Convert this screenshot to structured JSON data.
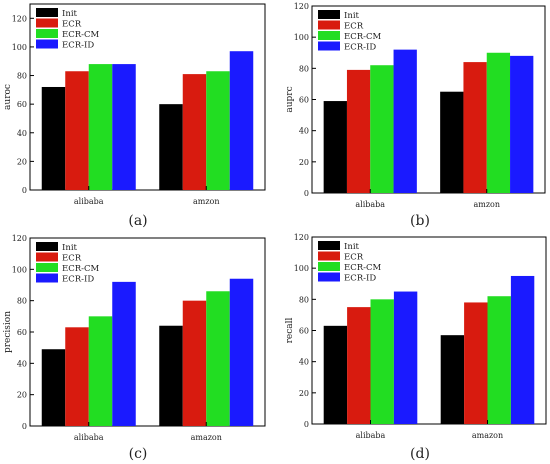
{
  "figure": {
    "panels": [
      {
        "caption": "(a)"
      },
      {
        "caption": "(b)"
      },
      {
        "caption": "(c)"
      },
      {
        "caption": "(d)"
      }
    ]
  },
  "colors": {
    "Init": "#000000",
    "ECR": "#d81b0f",
    "ECR-CM": "#22dd22",
    "ECR-ID": "#1a1aff"
  },
  "chart_data": [
    {
      "type": "bar",
      "ylabel": "auroc",
      "xlabel": "",
      "categories": [
        "alibaba",
        "amzon"
      ],
      "ylim": [
        0,
        130
      ],
      "yticks": [
        0,
        20,
        40,
        60,
        80,
        100,
        120
      ],
      "legend_position": "top-left",
      "series": [
        {
          "name": "Init",
          "values": [
            72,
            60
          ]
        },
        {
          "name": "ECR",
          "values": [
            83,
            81
          ]
        },
        {
          "name": "ECR-CM",
          "values": [
            88,
            83
          ]
        },
        {
          "name": "ECR-ID",
          "values": [
            88,
            97
          ]
        }
      ]
    },
    {
      "type": "bar",
      "ylabel": "auprc",
      "xlabel": "",
      "categories": [
        "alibaba",
        "amzon"
      ],
      "ylim": [
        0,
        120
      ],
      "yticks": [
        0,
        20,
        40,
        60,
        80,
        100,
        120
      ],
      "legend_position": "top-left",
      "series": [
        {
          "name": "Init",
          "values": [
            59,
            65
          ]
        },
        {
          "name": "ECR",
          "values": [
            79,
            84
          ]
        },
        {
          "name": "ECR-CM",
          "values": [
            82,
            90
          ]
        },
        {
          "name": "ECR-ID",
          "values": [
            92,
            88
          ]
        }
      ]
    },
    {
      "type": "bar",
      "ylabel": "precision",
      "xlabel": "",
      "categories": [
        "alibaba",
        "amazon"
      ],
      "ylim": [
        0,
        120
      ],
      "yticks": [
        0,
        20,
        40,
        60,
        80,
        100,
        120
      ],
      "legend_position": "top-left",
      "series": [
        {
          "name": "Init",
          "values": [
            49,
            64
          ]
        },
        {
          "name": "ECR",
          "values": [
            63,
            80
          ]
        },
        {
          "name": "ECR-CM",
          "values": [
            70,
            86
          ]
        },
        {
          "name": "ECR-ID",
          "values": [
            92,
            94
          ]
        }
      ]
    },
    {
      "type": "bar",
      "ylabel": "recall",
      "xlabel": "",
      "categories": [
        "alibaba",
        "amazon"
      ],
      "ylim": [
        0,
        120
      ],
      "yticks": [
        0,
        20,
        40,
        60,
        80,
        100,
        120
      ],
      "legend_position": "top-left",
      "series": [
        {
          "name": "Init",
          "values": [
            63,
            57
          ]
        },
        {
          "name": "ECR",
          "values": [
            75,
            78
          ]
        },
        {
          "name": "ECR-CM",
          "values": [
            80,
            82
          ]
        },
        {
          "name": "ECR-ID",
          "values": [
            85,
            95
          ]
        }
      ]
    }
  ]
}
